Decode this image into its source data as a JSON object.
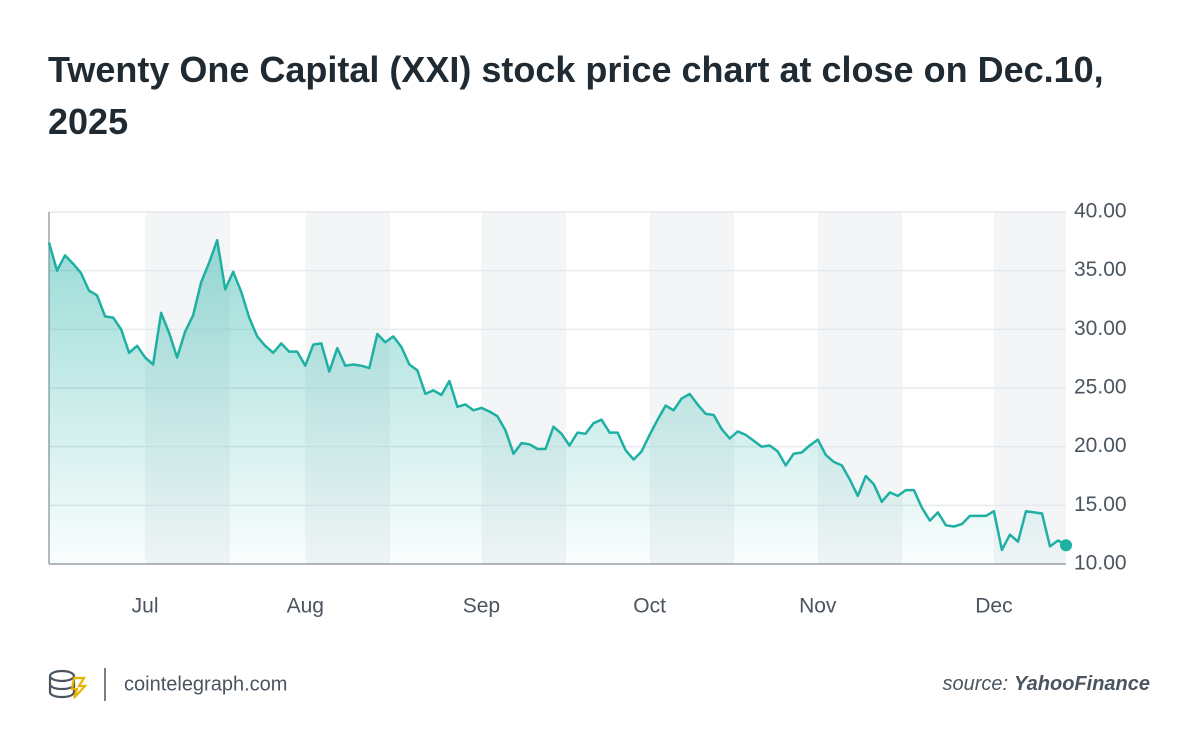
{
  "chart_data": {
    "type": "line",
    "title": "Twenty One Capital (XXI) stock price chart at close on Dec.10, 2025",
    "values": [
      37.4,
      35.0,
      36.3,
      35.6,
      34.8,
      33.3,
      32.9,
      31.1,
      31.0,
      30.0,
      28.0,
      28.6,
      27.6,
      27.0,
      31.4,
      29.7,
      27.6,
      29.8,
      31.2,
      34.0,
      35.7,
      37.6,
      33.4,
      34.9,
      33.2,
      31.0,
      29.4,
      28.6,
      28.0,
      28.8,
      28.1,
      28.1,
      26.9,
      28.7,
      28.8,
      26.4,
      28.4,
      26.9,
      27.0,
      26.9,
      26.7,
      29.6,
      28.9,
      29.4,
      28.5,
      27.0,
      26.5,
      24.5,
      24.8,
      24.4,
      25.6,
      23.4,
      23.6,
      23.1,
      23.3,
      23.0,
      22.6,
      21.4,
      19.4,
      20.3,
      20.2,
      19.8,
      19.8,
      21.7,
      21.1,
      20.1,
      21.2,
      21.1,
      22.0,
      22.3,
      21.2,
      21.2,
      19.7,
      18.9,
      19.6,
      21.0,
      22.3,
      23.5,
      23.1,
      24.1,
      24.5,
      23.6,
      22.8,
      22.7,
      21.5,
      20.7,
      21.3,
      21.0,
      20.5,
      20.0,
      20.1,
      19.6,
      18.4,
      19.4,
      19.5,
      20.1,
      20.6,
      19.3,
      18.7,
      18.4,
      17.2,
      15.8,
      17.5,
      16.8,
      15.3,
      16.1,
      15.8,
      16.3,
      16.3,
      14.8,
      13.7,
      14.4,
      13.3,
      13.2,
      13.4,
      14.1,
      14.1,
      14.1,
      14.5,
      11.2,
      12.5,
      11.9,
      14.5,
      14.4,
      14.3,
      11.5,
      12.0,
      11.6
    ],
    "color": "#1fb0a4",
    "xlim": [
      0,
      127
    ],
    "xticks": [
      {
        "value": 12,
        "label": "Jul"
      },
      {
        "value": 32,
        "label": "Aug"
      },
      {
        "value": 54,
        "label": "Sep"
      },
      {
        "value": 75,
        "label": "Oct"
      },
      {
        "value": 96,
        "label": "Nov"
      },
      {
        "value": 118,
        "label": "Dec"
      }
    ],
    "ylim": [
      10,
      40
    ],
    "yticks": [
      {
        "value": 10,
        "label": "10.00"
      },
      {
        "value": 15,
        "label": "15.00"
      },
      {
        "value": 20,
        "label": "20.00"
      },
      {
        "value": 25,
        "label": "25.00"
      },
      {
        "value": 30,
        "label": "30.00"
      },
      {
        "value": 35,
        "label": "35.00"
      },
      {
        "value": 40,
        "label": "40.00"
      }
    ],
    "grid": true,
    "site": "cointelegraph.com",
    "source_label": "source:",
    "source": "YahooFinance"
  }
}
